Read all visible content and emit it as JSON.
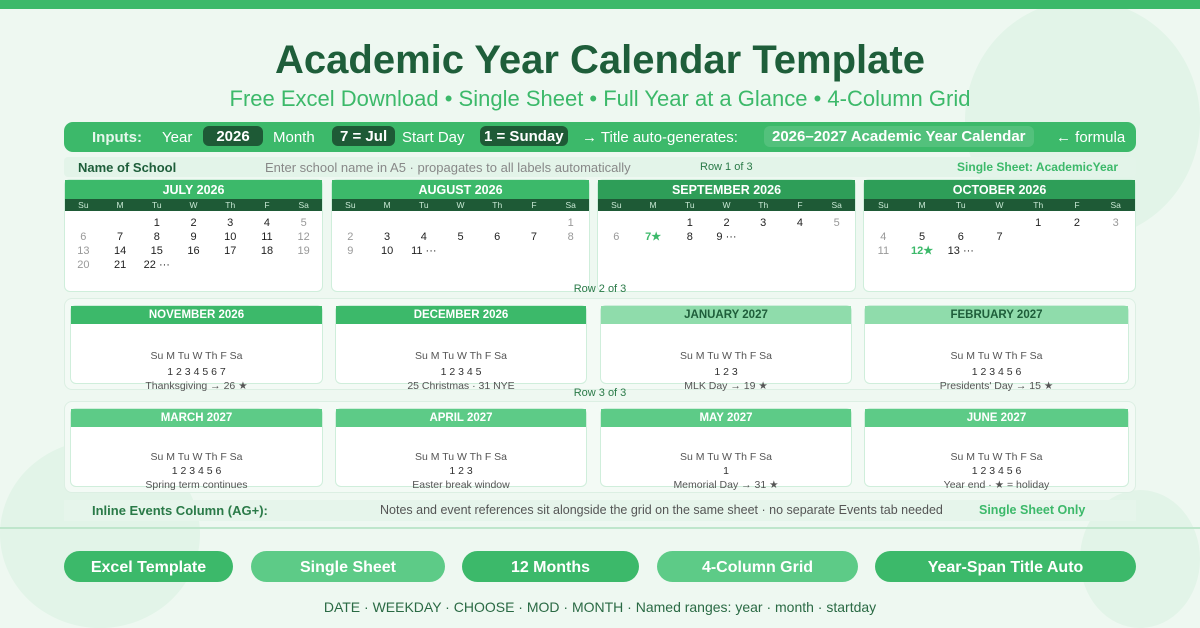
{
  "header": {
    "title": "Academic Year Calendar Template",
    "subtitle": "Free Excel Download • Single Sheet • Full Year at a Glance • 4-Column Grid"
  },
  "inputs": {
    "label": "Inputs:",
    "year_label": "Year",
    "year_value": "2026",
    "month_label": "Month",
    "month_value": "7 = Jul",
    "start_label": "Start Day",
    "start_value": "1 = Sunday",
    "title_label": "→ Title auto-generates:",
    "title_value": "2026–2027 Academic Year Calendar",
    "formula_note": "← formula"
  },
  "name_row": {
    "label": "Name of School",
    "hint": "Enter school name in A5 · propagates to all labels automatically",
    "sheet": "Single Sheet: AcademicYear"
  },
  "row_labels": [
    "Row 1 of 3",
    "Row 2 of 3",
    "Row 3 of 3"
  ],
  "dow_short": [
    "Su",
    "M",
    "Tu",
    "W",
    "Th",
    "F",
    "Sa"
  ],
  "colors": {
    "accent": "#3cb96a",
    "dark": "#1e5a36",
    "title": "#1e5e3a"
  },
  "row1": [
    {
      "title": "JULY 2026",
      "color": "#3cb96a",
      "weeks": [
        [
          "",
          "",
          "1",
          "2",
          "3",
          "4",
          "5"
        ],
        [
          "6",
          "7",
          "8",
          "9",
          "10",
          "11",
          "12"
        ],
        [
          "13",
          "14",
          "15",
          "16",
          "17",
          "18",
          "19"
        ],
        [
          "20",
          "21",
          "22 ···",
          "",
          "",
          "",
          ""
        ]
      ]
    },
    {
      "title": "AUGUST 2026",
      "color": "#3cb96a",
      "weeks": [
        [
          "",
          "",
          "",
          "",
          "",
          "",
          "1"
        ],
        [
          "2",
          "3",
          "4",
          "5",
          "6",
          "7",
          "8"
        ],
        [
          "9",
          "10",
          "11 ···",
          "",
          "",
          "",
          ""
        ]
      ]
    },
    {
      "title": "SEPTEMBER 2026",
      "color": "#2e9e58",
      "weeks": [
        [
          "",
          "",
          "1",
          "2",
          "3",
          "4",
          "5"
        ],
        [
          "6",
          "7★",
          "8",
          "9 ···",
          "",
          "",
          ""
        ]
      ]
    },
    {
      "title": "OCTOBER 2026",
      "color": "#2e9e58",
      "weeks": [
        [
          "",
          "",
          "",
          "",
          "1",
          "2",
          "3"
        ],
        [
          "4",
          "5",
          "6",
          "7",
          "",
          "",
          ""
        ],
        [
          "11",
          "12★",
          "13 ···",
          "",
          "",
          "",
          ""
        ]
      ]
    }
  ],
  "row2": [
    {
      "title": "NOVEMBER 2026",
      "color": "#3cb96a",
      "text_color": "#ffffff",
      "dow": "Su M Tu W Th F Sa",
      "days": "1 2 3 4 5 6 7",
      "note": "Thanksgiving → 26 ★"
    },
    {
      "title": "DECEMBER 2026",
      "color": "#3cb96a",
      "text_color": "#ffffff",
      "dow": "Su M Tu W Th F Sa",
      "days": "1 2 3 4 5",
      "note": "25 Christmas · 31 NYE"
    },
    {
      "title": "JANUARY 2027",
      "color": "#8fdcab",
      "text_color": "#1e5e3a",
      "dow": "Su M Tu W Th F Sa",
      "days": "1 2 3",
      "note": "MLK Day → 19 ★"
    },
    {
      "title": "FEBRUARY 2027",
      "color": "#8fdcab",
      "text_color": "#1e5e3a",
      "dow": "Su M Tu W Th F Sa",
      "days": "1 2 3 4 5 6",
      "note": "Presidents' Day → 15 ★"
    }
  ],
  "row3": [
    {
      "title": "MARCH 2027",
      "color": "#5dcb87",
      "text_color": "#ffffff",
      "dow": "Su M Tu W Th F Sa",
      "days": "1 2 3 4 5 6",
      "note": "Spring term continues"
    },
    {
      "title": "APRIL 2027",
      "color": "#5dcb87",
      "text_color": "#ffffff",
      "dow": "Su M Tu W Th F Sa",
      "days": "1 2 3",
      "note": "Easter break window"
    },
    {
      "title": "MAY 2027",
      "color": "#5dcb87",
      "text_color": "#ffffff",
      "dow": "Su M Tu W Th F Sa",
      "days": "1",
      "note": "Memorial Day → 31 ★"
    },
    {
      "title": "JUNE 2027",
      "color": "#5dcb87",
      "text_color": "#ffffff",
      "dow": "Su M Tu W Th F Sa",
      "days": "1 2 3 4 5 6",
      "note": "Year end · ★ = holiday"
    }
  ],
  "events": {
    "label": "Inline Events Column (AG+):",
    "text": "Notes and event references sit alongside the grid on the same sheet · no separate Events tab needed",
    "badge": "Single Sheet Only"
  },
  "buttons": [
    {
      "label": "Excel Template",
      "color": "#3cb96a"
    },
    {
      "label": "Single Sheet",
      "color": "#5dcb87"
    },
    {
      "label": "12 Months",
      "color": "#3cb96a"
    },
    {
      "label": "4-Column Grid",
      "color": "#5dcb87"
    },
    {
      "label": "Year-Span Title Auto",
      "color": "#3cb96a"
    }
  ],
  "footer": "DATE · WEEKDAY · CHOOSE · MOD · MONTH · Named ranges: year · month · startday"
}
